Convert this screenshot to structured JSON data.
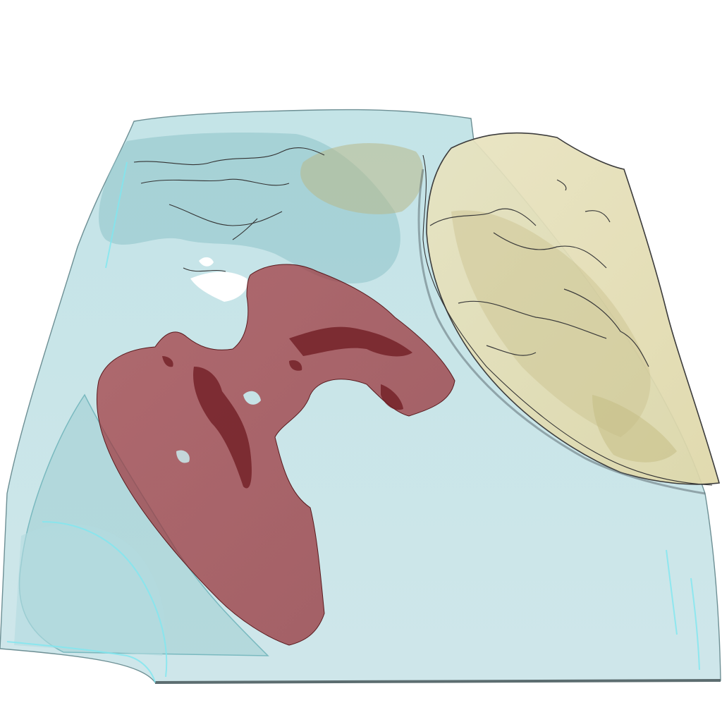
{
  "scene": {
    "background": "#ffffff",
    "regions": [
      {
        "name": "tissue-slab",
        "color": "#a9d6db",
        "opacity": 0.55
      },
      {
        "name": "yellow-region",
        "color": "#e4dfb6",
        "opacity": 0.85
      },
      {
        "name": "red-region",
        "color": "#9b2f35",
        "opacity": 0.7
      }
    ]
  }
}
